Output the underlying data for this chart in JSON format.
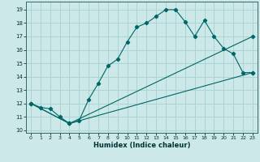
{
  "title": "",
  "xlabel": "Humidex (Indice chaleur)",
  "ylabel": "",
  "bg_color": "#cce8e8",
  "grid_color": "#aad4d4",
  "line_color": "#006666",
  "xlim": [
    -0.5,
    23.5
  ],
  "ylim": [
    9.8,
    19.6
  ],
  "xticks": [
    0,
    1,
    2,
    3,
    4,
    5,
    6,
    7,
    8,
    9,
    10,
    11,
    12,
    13,
    14,
    15,
    16,
    17,
    18,
    19,
    20,
    21,
    22,
    23
  ],
  "yticks": [
    10,
    11,
    12,
    13,
    14,
    15,
    16,
    17,
    18,
    19
  ],
  "line1_x": [
    0,
    1,
    2,
    3,
    4,
    5,
    6,
    7,
    8,
    9,
    10,
    11,
    12,
    13,
    14,
    15,
    16,
    17,
    18,
    19,
    20,
    21,
    22,
    23
  ],
  "line1_y": [
    12.0,
    11.7,
    11.6,
    11.0,
    10.5,
    10.7,
    12.3,
    13.5,
    14.8,
    15.3,
    16.6,
    17.7,
    18.0,
    18.5,
    19.0,
    19.0,
    18.1,
    17.0,
    18.2,
    17.0,
    16.1,
    15.7,
    14.3,
    14.3
  ],
  "line2_x": [
    0,
    4,
    23
  ],
  "line2_y": [
    12.0,
    10.5,
    14.3
  ],
  "line3_x": [
    0,
    4,
    23
  ],
  "line3_y": [
    12.0,
    10.5,
    17.0
  ]
}
